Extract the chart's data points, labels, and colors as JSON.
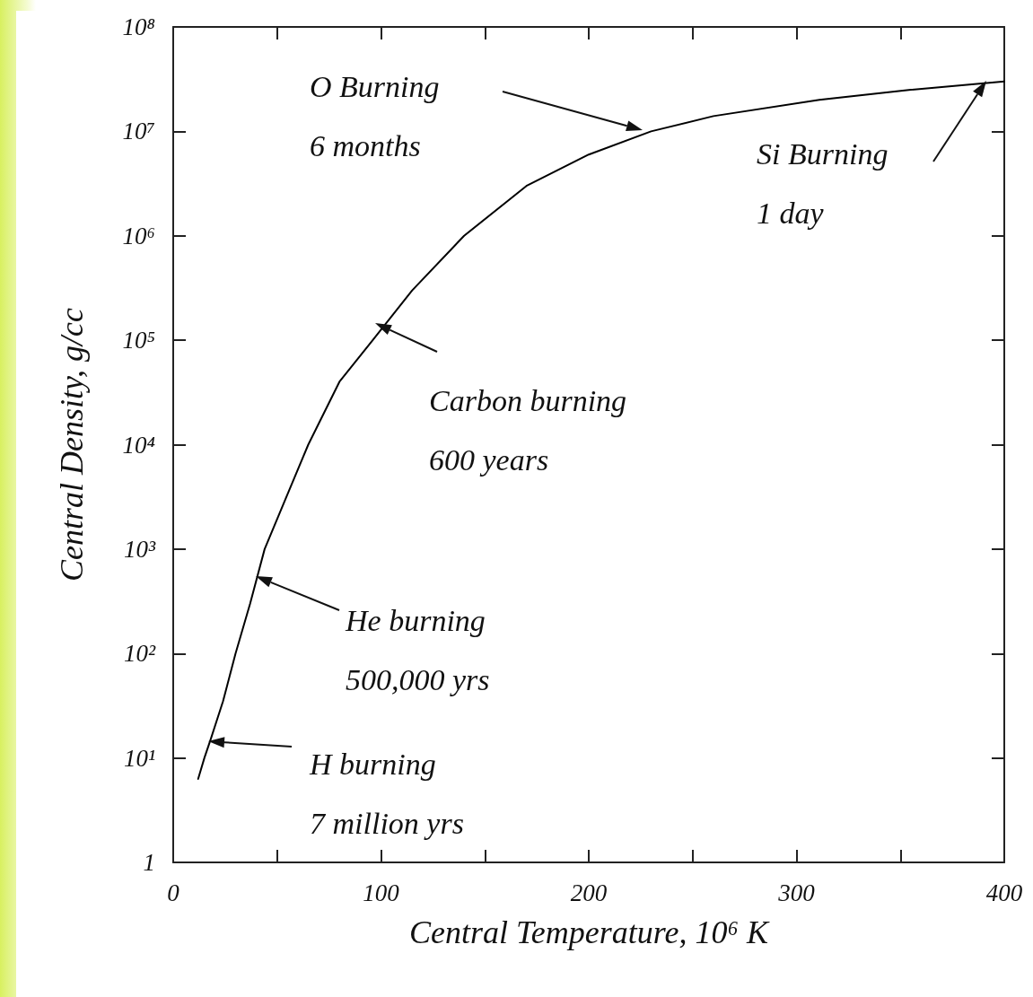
{
  "chart_data": {
    "type": "line",
    "xlabel": "Central Temperature, 10⁶ K",
    "ylabel": "Central Density, g/cc",
    "log": "y",
    "xlim": [
      0,
      400
    ],
    "ylim": [
      1,
      100000000
    ],
    "xticks": [
      0,
      {
        "value": 50,
        "label": null
      },
      100,
      {
        "value": 150,
        "label": null
      },
      200,
      {
        "value": 250,
        "label": null
      },
      300,
      {
        "value": 350,
        "label": null
      },
      400
    ],
    "yticks": [
      1,
      {
        "value": 10,
        "label": "10¹"
      },
      {
        "value": 100,
        "label": "10²"
      },
      {
        "value": 1000,
        "label": "10³"
      },
      {
        "value": 10000,
        "label": "10⁴"
      },
      {
        "value": 100000,
        "label": "10⁵"
      },
      {
        "value": 1000000,
        "label": "10⁶"
      },
      {
        "value": 10000000,
        "label": "10⁷"
      },
      {
        "value": 100000000,
        "label": "10⁸"
      }
    ],
    "grid": false,
    "marker": "none",
    "line_style": "solid",
    "series": [
      {
        "color": "#000000",
        "x": [
          12,
          15,
          18,
          24,
          30,
          37,
          44,
          54,
          65,
          80,
          96,
          115,
          140,
          170,
          200,
          230,
          260,
          311,
          355,
          400
        ],
        "values": [
          6.3,
          10,
          15,
          35,
          100,
          300,
          1000,
          3000,
          10000,
          40000,
          100000,
          300000,
          1000000,
          3000000,
          6000000,
          10000000,
          14000000,
          20000000,
          25000000,
          30000000
        ]
      }
    ],
    "annotations": [
      "H burning\n7 million yrs",
      "He burning\n500,000 yrs",
      "Carbon burning\n600 years",
      "O Burning\n6 months",
      "Si Burning\n1 day"
    ]
  }
}
